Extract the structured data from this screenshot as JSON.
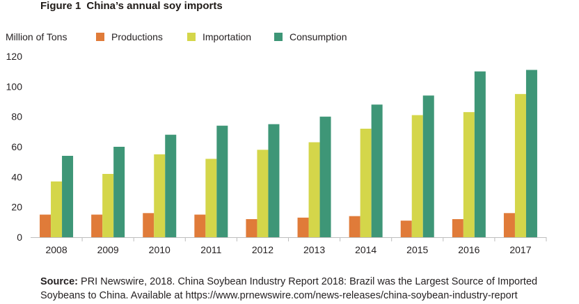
{
  "figure": {
    "label": "Figure 1",
    "title": "China’s annual soy imports"
  },
  "source": {
    "label": "Source:",
    "line1": "PRI Newswire, 2018. China Soybean Industry Report 2018: Brazil was the Largest Source of Imported",
    "line2": "Soybeans to China. Available at https://www.prnewswire.com/news-releases/china-soybean-industry-report"
  },
  "chart_data": {
    "type": "bar",
    "ylabel": "Million of Tons",
    "xlabel": "",
    "ylim": [
      0,
      120
    ],
    "yticks": [
      0,
      20,
      40,
      60,
      80,
      100,
      120
    ],
    "grid": false,
    "legend_position": "top",
    "categories": [
      "2008",
      "2009",
      "2010",
      "2011",
      "2012",
      "2013",
      "2014",
      "2015",
      "2016",
      "2017"
    ],
    "series": [
      {
        "name": "Productions",
        "color": "#e07b39",
        "values": [
          15,
          15,
          16,
          15,
          12,
          13,
          14,
          11,
          12,
          16
        ]
      },
      {
        "name": "Importation",
        "color": "#d4d64a",
        "values": [
          37,
          42,
          55,
          52,
          58,
          63,
          72,
          81,
          83,
          95
        ]
      },
      {
        "name": "Consumption",
        "color": "#3e9677",
        "values": [
          54,
          60,
          68,
          74,
          75,
          80,
          88,
          94,
          110,
          111
        ]
      }
    ]
  }
}
